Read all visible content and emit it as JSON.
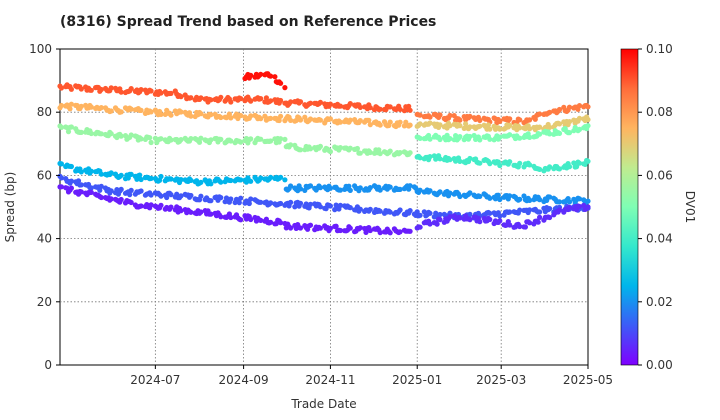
{
  "chart_data": {
    "type": "scatter",
    "title": "(8316)   Spread Trend based on Reference Prices",
    "xlabel": "Trade Date",
    "ylabel": "Spread (bp)",
    "x_range": [
      "2024-04-25",
      "2025-05-01"
    ],
    "ylim": [
      0,
      100
    ],
    "x_ticks": [
      "2024-07",
      "2024-09",
      "2024-11",
      "2025-01",
      "2025-03",
      "2025-05"
    ],
    "y_ticks": [
      "0",
      "20",
      "40",
      "60",
      "80",
      "100"
    ],
    "grid": true,
    "colorbar": {
      "label": "DV01",
      "range": [
        0.0,
        0.1
      ],
      "ticks": [
        "0.00",
        "0.02",
        "0.04",
        "0.06",
        "0.08",
        "0.10"
      ],
      "colormap": [
        "#7f00ff",
        "#3d5bf7",
        "#00b5eb",
        "#34e8cc",
        "#7ffeb4",
        "#c0eb8f",
        "#ffb460",
        "#ff6d3a",
        "#ff0000"
      ]
    },
    "series": [
      {
        "dv01": 0.09,
        "start": "2024-04-25",
        "end": "2024-12-29",
        "points": [
          [
            "2024-04-25",
            88
          ],
          [
            "2024-06-01",
            87
          ],
          [
            "2024-07-15",
            86
          ],
          [
            "2024-08-01",
            84
          ],
          [
            "2024-09-15",
            84
          ],
          [
            "2024-09-30",
            83
          ],
          [
            "2024-12-29",
            81
          ]
        ]
      },
      {
        "dv01": 0.098,
        "start": "2024-09-01",
        "end": "2024-09-30",
        "points": [
          [
            "2024-09-01",
            91
          ],
          [
            "2024-09-20",
            92
          ],
          [
            "2024-09-30",
            88
          ]
        ]
      },
      {
        "dv01": 0.085,
        "start": "2025-01-01",
        "end": "2025-05-01",
        "points": [
          [
            "2025-01-01",
            79
          ],
          [
            "2025-02-01",
            78
          ],
          [
            "2025-03-20",
            77
          ],
          [
            "2025-04-01",
            80
          ],
          [
            "2025-05-01",
            82
          ]
        ]
      },
      {
        "dv01": 0.075,
        "start": "2024-04-25",
        "end": "2024-12-29",
        "points": [
          [
            "2024-04-25",
            82
          ],
          [
            "2024-07-01",
            80
          ],
          [
            "2024-09-30",
            78
          ],
          [
            "2024-12-29",
            76
          ]
        ]
      },
      {
        "dv01": 0.07,
        "start": "2025-01-01",
        "end": "2025-05-01",
        "points": [
          [
            "2025-01-01",
            76
          ],
          [
            "2025-03-25",
            75
          ],
          [
            "2025-04-10",
            76
          ],
          [
            "2025-05-01",
            78
          ]
        ]
      },
      {
        "dv01": 0.055,
        "start": "2024-04-25",
        "end": "2024-12-29",
        "points": [
          [
            "2024-04-25",
            75
          ],
          [
            "2024-07-01",
            71
          ],
          [
            "2024-09-30",
            71
          ],
          [
            "2024-10-01",
            69
          ],
          [
            "2024-12-29",
            67
          ]
        ]
      },
      {
        "dv01": 0.05,
        "start": "2025-01-01",
        "end": "2025-05-01",
        "points": [
          [
            "2025-01-01",
            72
          ],
          [
            "2025-03-01",
            72
          ],
          [
            "2025-03-25",
            73
          ],
          [
            "2025-05-01",
            75
          ]
        ]
      },
      {
        "dv01": 0.04,
        "start": "2025-01-01",
        "end": "2025-05-01",
        "points": [
          [
            "2025-01-01",
            66
          ],
          [
            "2025-03-25",
            63
          ],
          [
            "2025-03-30",
            62
          ],
          [
            "2025-05-01",
            64
          ]
        ]
      },
      {
        "dv01": 0.025,
        "start": "2024-04-25",
        "end": "2024-09-30",
        "points": [
          [
            "2024-04-25",
            63
          ],
          [
            "2024-06-01",
            60
          ],
          [
            "2024-08-01",
            58
          ],
          [
            "2024-09-30",
            59
          ]
        ]
      },
      {
        "dv01": 0.02,
        "start": "2024-10-01",
        "end": "2025-05-01",
        "points": [
          [
            "2024-10-01",
            56
          ],
          [
            "2024-12-29",
            56
          ],
          [
            "2025-01-01",
            55
          ],
          [
            "2025-03-01",
            53
          ],
          [
            "2025-05-01",
            52
          ]
        ]
      },
      {
        "dv01": 0.012,
        "start": "2024-04-25",
        "end": "2025-05-01",
        "points": [
          [
            "2024-04-25",
            59
          ],
          [
            "2024-06-01",
            55
          ],
          [
            "2024-09-01",
            52
          ],
          [
            "2024-12-29",
            48
          ],
          [
            "2025-02-01",
            47
          ],
          [
            "2025-05-01",
            50
          ]
        ]
      },
      {
        "dv01": 0.004,
        "start": "2024-04-25",
        "end": "2024-12-29",
        "points": [
          [
            "2024-04-25",
            56
          ],
          [
            "2024-06-15",
            51
          ],
          [
            "2024-09-30",
            45
          ],
          [
            "2024-10-01",
            44
          ],
          [
            "2024-12-29",
            42
          ]
        ]
      },
      {
        "dv01": 0.006,
        "start": "2025-01-01",
        "end": "2025-05-01",
        "points": [
          [
            "2025-01-01",
            44
          ],
          [
            "2025-02-01",
            47
          ],
          [
            "2025-03-15",
            44
          ],
          [
            "2025-04-15",
            49
          ],
          [
            "2025-05-01",
            50
          ]
        ]
      }
    ]
  }
}
